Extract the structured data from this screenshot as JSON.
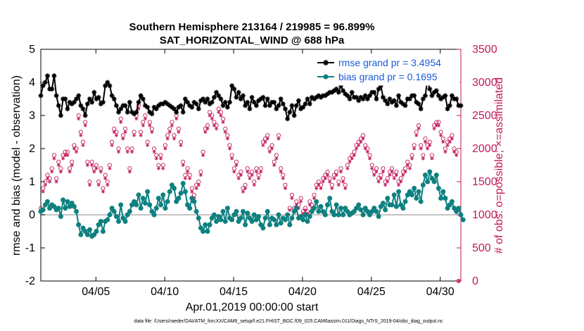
{
  "chart_data": {
    "type": "line",
    "title_line1": "Southern Hemisphere 213164 / 219985 = 96.899%",
    "title_line2": "SAT_HORIZONTAL_WIND @ 688 hPa",
    "ylabel_left": "rmse and bias (model - observation)",
    "ylabel_right": "# of obs: o=possible; ×=assimilated",
    "xlabel": "Apr.01,2019 00:00:00 start",
    "footnote": "data file: /Users/raeder/DAI/ATM_forcXX/CAM6_setup/f.e21.FHIST_BGC.f09_025.CAM6assim.011/Diags_NTrS_2019-04/obs_diag_output.nc",
    "ylim_left": [
      -2,
      5
    ],
    "ylim_right": [
      0,
      3500
    ],
    "xlim_days": [
      1.0,
      31.5
    ],
    "x_tick_days": [
      5,
      10,
      15,
      20,
      25,
      30
    ],
    "x_tick_labels": [
      "04/05",
      "04/10",
      "04/15",
      "04/20",
      "04/25",
      "04/30"
    ],
    "y_ticks_left": [
      "5",
      "4",
      "3",
      "2",
      "1",
      "0",
      "-1",
      "-2"
    ],
    "y_ticks_right": [
      "3500",
      "3000",
      "2500",
      "2000",
      "1500",
      "1000",
      "500",
      "0"
    ],
    "colors": {
      "rmse": "#000000",
      "bias": "#0e8080",
      "obs": "#c2185b",
      "legend_text": "#1a5bd6",
      "zero_line": "#b0b0b0"
    },
    "series": [
      {
        "name": "rmse grand pr = 3.4954",
        "axis": "left",
        "values": [
          3.6,
          3.9,
          4.0,
          4.2,
          3.8,
          3.8,
          4.2,
          3.6,
          3.3,
          3.0,
          3.5,
          3.5,
          3.2,
          3.4,
          3.35,
          3.4,
          3.5,
          3.6,
          3.3,
          3.2,
          3.0,
          3.35,
          3.5,
          3.4,
          3.7,
          3.5,
          3.55,
          3.35,
          3.4,
          3.9,
          4.0,
          3.9,
          3.6,
          3.5,
          3.3,
          3.1,
          3.2,
          3.3,
          3.3,
          3.1,
          3.4,
          3.1,
          3.05,
          3.1,
          3.4,
          3.6,
          3.5,
          3.3,
          3.25,
          3.1,
          3.05,
          3.25,
          3.2,
          3.3,
          3.35,
          3.35,
          3.4,
          3.35,
          3.3,
          3.25,
          3.2,
          3.1,
          3.25,
          3.3,
          3.1,
          3.5,
          3.4,
          3.3,
          3.25,
          3.4,
          3.35,
          3.2,
          3.45,
          3.5,
          3.4,
          3.5,
          3.35,
          3.4,
          3.55,
          3.7,
          3.6,
          3.5,
          3.3,
          3.4,
          3.25,
          3.4,
          3.9,
          3.8,
          3.55,
          3.7,
          3.5,
          3.6,
          3.3,
          3.4,
          3.2,
          3.55,
          3.4,
          3.3,
          3.45,
          3.5,
          3.55,
          3.3,
          3.5,
          3.3,
          3.4,
          3.4,
          3.2,
          3.3,
          3.5,
          3.35,
          3.2,
          2.9,
          3.1,
          3.3,
          3.0,
          3.3,
          3.45,
          3.2,
          3.25,
          3.35,
          3.5,
          3.35,
          3.55,
          3.5,
          3.55,
          3.6,
          3.55,
          3.6,
          3.6,
          3.65,
          3.7,
          3.7,
          3.75,
          3.8,
          3.7,
          3.9,
          3.75,
          3.65,
          3.6,
          3.5,
          3.7,
          3.55,
          3.55,
          3.45,
          3.55,
          3.5,
          3.6,
          3.5,
          3.6,
          3.7,
          3.7,
          3.5,
          3.8,
          3.9,
          3.55,
          3.45,
          3.35,
          3.5,
          3.4,
          3.45,
          3.3,
          3.6,
          3.4,
          3.35,
          3.3,
          3.5,
          3.5,
          3.6,
          3.6,
          3.4,
          3.35,
          3.2,
          3.5,
          3.6,
          4.1,
          3.8,
          3.6,
          3.7,
          3.75,
          3.6,
          3.5,
          3.55,
          3.6,
          3.2,
          3.3,
          3.6,
          3.5,
          3.5,
          3.3,
          3.3
        ]
      },
      {
        "name": "bias grand pr = 0.1695",
        "axis": "left",
        "values": [
          0.1,
          0.15,
          0.3,
          0.4,
          0.2,
          0.3,
          0.25,
          0.15,
          0.2,
          -0.05,
          0.45,
          0.2,
          0.4,
          0.25,
          0.35,
          0.25,
          0.1,
          -0.3,
          -0.6,
          -0.4,
          -0.5,
          -0.6,
          -0.45,
          -0.65,
          -0.6,
          -0.5,
          -0.3,
          -0.2,
          -0.5,
          -0.2,
          -0.15,
          0.0,
          0.2,
          0.1,
          -0.05,
          -0.2,
          0.3,
          -0.1,
          -0.2,
          0.0,
          0.1,
          0.3,
          0.4,
          0.3,
          0.6,
          0.2,
          0.5,
          0.35,
          0.7,
          0.3,
          0.1,
          0.0,
          0.2,
          0.5,
          0.3,
          0.6,
          0.2,
          0.4,
          0.7,
          0.9,
          0.8,
          0.4,
          0.5,
          0.65,
          0.95,
          0.7,
          0.3,
          0.2,
          0.5,
          0.4,
          0.1,
          -0.1,
          -0.4,
          -0.5,
          -0.3,
          -0.5,
          -0.3,
          -0.1,
          0.0,
          -0.2,
          -0.05,
          -0.15,
          0.1,
          -0.2,
          0.2,
          -0.1,
          -0.15,
          0.0,
          0.1,
          -0.2,
          -0.1,
          0.1,
          -0.3,
          0.05,
          -0.1,
          -0.2,
          0.0,
          -0.15,
          -0.05,
          -0.3,
          -0.4,
          -0.1,
          0.1,
          -0.3,
          -0.1,
          -0.15,
          -0.3,
          0.0,
          -0.25,
          -0.1,
          -0.15,
          0.0,
          -0.3,
          -0.1,
          0.1,
          0.2,
          -0.1,
          -0.05,
          -0.15,
          0.0,
          -0.2,
          -0.05,
          0.1,
          0.2,
          0.4,
          0.1,
          0.25,
          0.1,
          0.0,
          0.3,
          0.5,
          0.1,
          0.0,
          0.3,
          0.0,
          0.2,
          0.0,
          0.2,
          0.1,
          0.0,
          0.05,
          0.1,
          0.2,
          0.3,
          0.15,
          0.0,
          0.2,
          0.1,
          0.0,
          0.1,
          0.2,
          0.1,
          -0.05,
          0.25,
          0.35,
          0.15,
          0.5,
          0.3,
          0.3,
          0.6,
          0.25,
          0.7,
          0.3,
          0.2,
          0.4,
          0.6,
          0.7,
          0.6,
          0.8,
          0.5,
          0.7,
          0.4,
          0.9,
          1.2,
          1.0,
          1.3,
          1.1,
          1.0,
          1.2,
          0.8,
          0.5,
          0.7,
          0.5,
          0.2,
          0.3,
          0.4,
          0.2,
          0.1,
          0.2,
          0.0,
          -0.15
        ]
      },
      {
        "name": "possible",
        "axis": "right",
        "marker": "circle",
        "values": [
          1100,
          1400,
          1500,
          1600,
          1550,
          1700,
          1900,
          1550,
          1800,
          1700,
          1900,
          1950,
          1950,
          1700,
          1800,
          2050,
          2000,
          2500,
          2250,
          2100,
          2400,
          1800,
          1500,
          1800,
          1700,
          1750,
          1500,
          1700,
          1400,
          1600,
          1500,
          1750,
          2100,
          2300,
          2250,
          2000,
          2450,
          2200,
          2300,
          2000,
          1700,
          2000,
          2250,
          2500,
          2650,
          2250,
          2400,
          2500,
          2100,
          2400,
          2300,
          2000,
          1900,
          1750,
          1900,
          1750,
          2050,
          2200,
          2300,
          2400,
          2200,
          2500,
          2300,
          2100,
          1800,
          1600,
          1700,
          1600,
          1400,
          1300,
          1450,
          1500,
          1650,
          1950,
          2300,
          2350,
          2550,
          2500,
          2400,
          2350,
          2600,
          2550,
          2450,
          2300,
          2200,
          2050,
          1900,
          1700,
          1800,
          1600,
          1650,
          1400,
          1450,
          1700,
          1600,
          1650,
          1500,
          1700,
          1600,
          1700,
          2100,
          2150,
          2200,
          2000,
          2050,
          1800,
          1900,
          2200,
          1700,
          1600,
          1450,
          1000,
          1100,
          1300,
          1100,
          1200,
          1150,
          1250,
          1050,
          1100,
          1050,
          1200,
          1150,
          1300,
          1450,
          1500,
          1450,
          1550,
          1600,
          1650,
          1550,
          1450,
          1600,
          1650,
          1500,
          1700,
          1550,
          1450,
          1750,
          1850,
          1900,
          1950,
          2050,
          2100,
          2150,
          2200,
          2050,
          2000,
          1900,
          1750,
          1650,
          1700,
          1550,
          1600,
          1700,
          1500,
          1550,
          1650,
          1700,
          1600,
          1650,
          1500,
          1550,
          1650,
          1700,
          1800,
          1750,
          1900,
          2050,
          2250,
          2350,
          2050,
          1900,
          2150,
          2050,
          2100,
          1900,
          2350,
          2400,
          2400,
          2250,
          2150,
          2000,
          2100,
          2150,
          2200,
          2000,
          1950,
          0
        ]
      },
      {
        "name": "assimilated",
        "axis": "right",
        "marker": "asterisk",
        "values": [
          1060,
          1350,
          1450,
          1550,
          1500,
          1650,
          1850,
          1500,
          1750,
          1650,
          1850,
          1900,
          1900,
          1650,
          1750,
          2000,
          1950,
          2450,
          2200,
          2050,
          2350,
          1750,
          1450,
          1750,
          1650,
          1700,
          1450,
          1650,
          1350,
          1550,
          1450,
          1700,
          2050,
          2250,
          2200,
          1950,
          2400,
          2150,
          2250,
          1950,
          1650,
          1950,
          2200,
          2450,
          2600,
          2200,
          2350,
          2450,
          2050,
          2350,
          2250,
          1950,
          1850,
          1700,
          1850,
          1700,
          2000,
          2150,
          2250,
          2350,
          2150,
          2450,
          2250,
          2050,
          1750,
          1550,
          1650,
          1550,
          1350,
          1250,
          1400,
          1450,
          1600,
          1900,
          2250,
          2300,
          2500,
          2450,
          2350,
          2300,
          2550,
          2500,
          2400,
          2250,
          2150,
          2000,
          1850,
          1650,
          1750,
          1550,
          1600,
          1350,
          1400,
          1650,
          1550,
          1600,
          1450,
          1650,
          1550,
          1650,
          2050,
          2100,
          2150,
          1950,
          2000,
          1750,
          1850,
          2150,
          1650,
          1550,
          1400,
          980,
          1070,
          1250,
          1070,
          1150,
          1100,
          1200,
          1020,
          1070,
          1020,
          1150,
          1100,
          1250,
          1400,
          1450,
          1400,
          1500,
          1550,
          1600,
          1500,
          1400,
          1550,
          1600,
          1450,
          1650,
          1500,
          1400,
          1700,
          1800,
          1850,
          1900,
          2000,
          2050,
          2100,
          2150,
          2000,
          1950,
          1850,
          1700,
          1600,
          1650,
          1500,
          1550,
          1650,
          1450,
          1500,
          1600,
          1650,
          1550,
          1600,
          1450,
          1500,
          1600,
          1650,
          1750,
          1700,
          1850,
          2000,
          2200,
          2300,
          2000,
          1850,
          2100,
          2000,
          2050,
          1850,
          2300,
          2350,
          2350,
          2200,
          2100,
          1950,
          2050,
          2100,
          2150,
          1950,
          1900,
          0
        ]
      }
    ],
    "legend": {
      "placement": "top-right",
      "entries": [
        "rmse grand pr = 3.4954",
        "bias grand pr = 0.1695"
      ]
    }
  }
}
